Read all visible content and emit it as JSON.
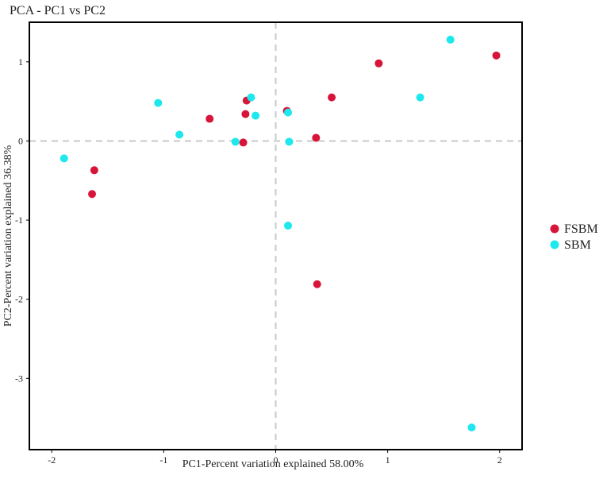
{
  "chart_data": {
    "type": "scatter",
    "title": "PCA - PC1 vs PC2",
    "xlabel": "PC1-Percent variation explained 58.00%",
    "ylabel": "PC2-Percent variation explained 36.38%",
    "xlim": [
      -2.2,
      2.2
    ],
    "ylim": [
      -3.9,
      1.5
    ],
    "xticks": [
      -2,
      -1,
      0,
      1,
      2
    ],
    "yticks": [
      -3,
      -2,
      -1,
      0,
      1
    ],
    "reference_lines": {
      "x": 0,
      "y": 0,
      "style": "dashed"
    },
    "grid": false,
    "legend_position": "right",
    "series": [
      {
        "name": "FSBM",
        "color": "#d7153a",
        "points": [
          {
            "x": 1.97,
            "y": 1.08
          },
          {
            "x": 0.92,
            "y": 0.98
          },
          {
            "x": 0.5,
            "y": 0.55
          },
          {
            "x": 0.1,
            "y": 0.38
          },
          {
            "x": -0.26,
            "y": 0.51
          },
          {
            "x": -0.27,
            "y": 0.34
          },
          {
            "x": -0.59,
            "y": 0.28
          },
          {
            "x": -0.29,
            "y": -0.02
          },
          {
            "x": 0.36,
            "y": 0.04
          },
          {
            "x": -1.62,
            "y": -0.37
          },
          {
            "x": -1.64,
            "y": -0.67
          },
          {
            "x": 0.37,
            "y": -1.81
          }
        ]
      },
      {
        "name": "SBM",
        "color": "#1de8ee",
        "points": [
          {
            "x": 1.56,
            "y": 1.28
          },
          {
            "x": 1.29,
            "y": 0.55
          },
          {
            "x": -1.05,
            "y": 0.48
          },
          {
            "x": -0.22,
            "y": 0.55
          },
          {
            "x": -0.18,
            "y": 0.32
          },
          {
            "x": 0.11,
            "y": 0.36
          },
          {
            "x": -0.86,
            "y": 0.08
          },
          {
            "x": -0.36,
            "y": -0.01
          },
          {
            "x": 0.12,
            "y": -0.01
          },
          {
            "x": -1.89,
            "y": -0.22
          },
          {
            "x": 0.11,
            "y": -1.07
          },
          {
            "x": 1.75,
            "y": -3.62
          }
        ]
      }
    ]
  }
}
